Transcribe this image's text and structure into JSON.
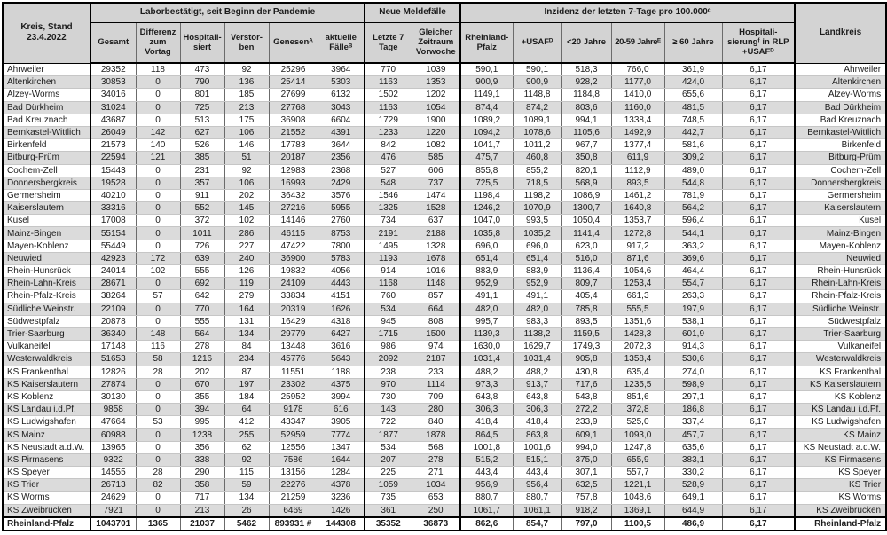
{
  "header": {
    "kreis_label": "Kreis, Stand\n23.4.2022",
    "groups": [
      {
        "label": "Laborbestätigt, seit Beginn der Pandemie"
      },
      {
        "label": "Neue Meldefälle"
      },
      {
        "label": "Inzidenz der letzten 7-Tage pro 100.000ᶜ"
      }
    ],
    "columns": [
      "Gesamt",
      "Differenz zum Vortag",
      "Hospitali-siert",
      "Verstor-ben",
      "Genesenᴬ",
      "aktuelle Fälleᴮ",
      "Letzte 7 Tage",
      "Gleicher Zeitraum Vorwoche",
      "Rheinland-Pfalz",
      "+USAFᴰ",
      "<20 Jahre",
      "20-59 Jahreᴱ",
      "≥ 60 Jahre",
      "Hospitali-sierungᶠ in RLP +USAFᴰ"
    ],
    "landkreis_label": "Landkreis"
  },
  "rows": [
    {
      "kreis": "Ahrweiler",
      "values": [
        "29352",
        "118",
        "473",
        "92",
        "25296",
        "3964",
        "770",
        "1039",
        "590,1",
        "590,1",
        "518,3",
        "766,0",
        "361,9",
        "6,17"
      ]
    },
    {
      "kreis": "Altenkirchen",
      "values": [
        "30853",
        "0",
        "790",
        "136",
        "25414",
        "5303",
        "1163",
        "1353",
        "900,9",
        "900,9",
        "928,2",
        "1177,0",
        "424,0",
        "6,17"
      ]
    },
    {
      "kreis": "Alzey-Worms",
      "values": [
        "34016",
        "0",
        "801",
        "185",
        "27699",
        "6132",
        "1502",
        "1202",
        "1149,1",
        "1148,8",
        "1184,8",
        "1410,0",
        "655,6",
        "6,17"
      ]
    },
    {
      "kreis": "Bad Dürkheim",
      "values": [
        "31024",
        "0",
        "725",
        "213",
        "27768",
        "3043",
        "1163",
        "1054",
        "874,4",
        "874,2",
        "803,6",
        "1160,0",
        "481,5",
        "6,17"
      ]
    },
    {
      "kreis": "Bad Kreuznach",
      "values": [
        "43687",
        "0",
        "513",
        "175",
        "36908",
        "6604",
        "1729",
        "1900",
        "1089,2",
        "1089,1",
        "994,1",
        "1338,4",
        "748,5",
        "6,17"
      ]
    },
    {
      "kreis": "Bernkastel-Wittlich",
      "values": [
        "26049",
        "142",
        "627",
        "106",
        "21552",
        "4391",
        "1233",
        "1220",
        "1094,2",
        "1078,6",
        "1105,6",
        "1492,9",
        "442,7",
        "6,17"
      ]
    },
    {
      "kreis": "Birkenfeld",
      "values": [
        "21573",
        "140",
        "526",
        "146",
        "17783",
        "3644",
        "842",
        "1082",
        "1041,7",
        "1011,2",
        "967,7",
        "1377,4",
        "581,6",
        "6,17"
      ]
    },
    {
      "kreis": "Bitburg-Prüm",
      "values": [
        "22594",
        "121",
        "385",
        "51",
        "20187",
        "2356",
        "476",
        "585",
        "475,7",
        "460,8",
        "350,8",
        "611,9",
        "309,2",
        "6,17"
      ]
    },
    {
      "kreis": "Cochem-Zell",
      "values": [
        "15443",
        "0",
        "231",
        "92",
        "12983",
        "2368",
        "527",
        "606",
        "855,8",
        "855,2",
        "820,1",
        "1112,9",
        "489,0",
        "6,17"
      ]
    },
    {
      "kreis": "Donnersbergkreis",
      "values": [
        "19528",
        "0",
        "357",
        "106",
        "16993",
        "2429",
        "548",
        "737",
        "725,5",
        "718,5",
        "568,9",
        "893,5",
        "544,8",
        "6,17"
      ]
    },
    {
      "kreis": "Germersheim",
      "values": [
        "40210",
        "0",
        "911",
        "202",
        "36432",
        "3576",
        "1546",
        "1474",
        "1198,4",
        "1198,2",
        "1086,9",
        "1461,2",
        "781,9",
        "6,17"
      ]
    },
    {
      "kreis": "Kaiserslautern",
      "values": [
        "33316",
        "0",
        "552",
        "145",
        "27216",
        "5955",
        "1325",
        "1528",
        "1246,2",
        "1070,9",
        "1300,7",
        "1640,8",
        "564,2",
        "6,17"
      ]
    },
    {
      "kreis": "Kusel",
      "values": [
        "17008",
        "0",
        "372",
        "102",
        "14146",
        "2760",
        "734",
        "637",
        "1047,0",
        "993,5",
        "1050,4",
        "1353,7",
        "596,4",
        "6,17"
      ]
    },
    {
      "kreis": "Mainz-Bingen",
      "values": [
        "55154",
        "0",
        "1011",
        "286",
        "46115",
        "8753",
        "2191",
        "2188",
        "1035,8",
        "1035,2",
        "1141,4",
        "1272,8",
        "544,1",
        "6,17"
      ]
    },
    {
      "kreis": "Mayen-Koblenz",
      "values": [
        "55449",
        "0",
        "726",
        "227",
        "47422",
        "7800",
        "1495",
        "1328",
        "696,0",
        "696,0",
        "623,0",
        "917,2",
        "363,2",
        "6,17"
      ]
    },
    {
      "kreis": "Neuwied",
      "values": [
        "42923",
        "172",
        "639",
        "240",
        "36900",
        "5783",
        "1193",
        "1678",
        "651,4",
        "651,4",
        "516,0",
        "871,6",
        "369,6",
        "6,17"
      ]
    },
    {
      "kreis": "Rhein-Hunsrück",
      "values": [
        "24014",
        "102",
        "555",
        "126",
        "19832",
        "4056",
        "914",
        "1016",
        "883,9",
        "883,9",
        "1136,4",
        "1054,6",
        "464,4",
        "6,17"
      ]
    },
    {
      "kreis": "Rhein-Lahn-Kreis",
      "values": [
        "28671",
        "0",
        "692",
        "119",
        "24109",
        "4443",
        "1168",
        "1148",
        "952,9",
        "952,9",
        "809,7",
        "1253,4",
        "554,7",
        "6,17"
      ]
    },
    {
      "kreis": "Rhein-Pfalz-Kreis",
      "values": [
        "38264",
        "57",
        "642",
        "279",
        "33834",
        "4151",
        "760",
        "857",
        "491,1",
        "491,1",
        "405,4",
        "661,3",
        "263,3",
        "6,17"
      ]
    },
    {
      "kreis": "Südliche Weinstr.",
      "values": [
        "22109",
        "0",
        "770",
        "164",
        "20319",
        "1626",
        "534",
        "664",
        "482,0",
        "482,0",
        "785,8",
        "555,5",
        "197,9",
        "6,17"
      ]
    },
    {
      "kreis": "Südwestpfalz",
      "values": [
        "20878",
        "0",
        "555",
        "131",
        "16429",
        "4318",
        "945",
        "808",
        "995,7",
        "983,3",
        "893,5",
        "1351,6",
        "538,1",
        "6,17"
      ]
    },
    {
      "kreis": "Trier-Saarburg",
      "values": [
        "36340",
        "148",
        "564",
        "134",
        "29779",
        "6427",
        "1715",
        "1500",
        "1139,3",
        "1138,2",
        "1159,5",
        "1428,3",
        "601,9",
        "6,17"
      ]
    },
    {
      "kreis": "Vulkaneifel",
      "values": [
        "17148",
        "116",
        "278",
        "84",
        "13448",
        "3616",
        "986",
        "974",
        "1630,0",
        "1629,7",
        "1749,3",
        "2072,3",
        "914,3",
        "6,17"
      ]
    },
    {
      "kreis": "Westerwaldkreis",
      "values": [
        "51653",
        "58",
        "1216",
        "234",
        "45776",
        "5643",
        "2092",
        "2187",
        "1031,4",
        "1031,4",
        "905,8",
        "1358,4",
        "530,6",
        "6,17"
      ]
    },
    {
      "kreis": "KS Frankenthal",
      "values": [
        "12826",
        "28",
        "202",
        "87",
        "11551",
        "1188",
        "238",
        "233",
        "488,2",
        "488,2",
        "430,8",
        "635,4",
        "274,0",
        "6,17"
      ]
    },
    {
      "kreis": "KS Kaiserslautern",
      "values": [
        "27874",
        "0",
        "670",
        "197",
        "23302",
        "4375",
        "970",
        "1114",
        "973,3",
        "913,7",
        "717,6",
        "1235,5",
        "598,9",
        "6,17"
      ]
    },
    {
      "kreis": "KS Koblenz",
      "values": [
        "30130",
        "0",
        "355",
        "184",
        "25952",
        "3994",
        "730",
        "709",
        "643,8",
        "643,8",
        "543,8",
        "851,6",
        "297,1",
        "6,17"
      ]
    },
    {
      "kreis": "KS Landau i.d.Pf.",
      "values": [
        "9858",
        "0",
        "394",
        "64",
        "9178",
        "616",
        "143",
        "280",
        "306,3",
        "306,3",
        "272,2",
        "372,8",
        "186,8",
        "6,17"
      ]
    },
    {
      "kreis": "KS Ludwigshafen",
      "values": [
        "47664",
        "53",
        "995",
        "412",
        "43347",
        "3905",
        "722",
        "840",
        "418,4",
        "418,4",
        "233,9",
        "525,0",
        "337,4",
        "6,17"
      ]
    },
    {
      "kreis": "KS Mainz",
      "values": [
        "60988",
        "0",
        "1238",
        "255",
        "52959",
        "7774",
        "1877",
        "1878",
        "864,5",
        "863,8",
        "609,1",
        "1093,0",
        "457,7",
        "6,17"
      ]
    },
    {
      "kreis": "KS Neustadt a.d.W.",
      "values": [
        "13965",
        "0",
        "356",
        "62",
        "12556",
        "1347",
        "534",
        "568",
        "1001,8",
        "1001,6",
        "994,0",
        "1247,8",
        "635,6",
        "6,17"
      ]
    },
    {
      "kreis": "KS Pirmasens",
      "values": [
        "9322",
        "0",
        "338",
        "92",
        "7586",
        "1644",
        "207",
        "278",
        "515,2",
        "515,1",
        "375,0",
        "655,9",
        "383,1",
        "6,17"
      ]
    },
    {
      "kreis": "KS Speyer",
      "values": [
        "14555",
        "28",
        "290",
        "115",
        "13156",
        "1284",
        "225",
        "271",
        "443,4",
        "443,4",
        "307,1",
        "557,7",
        "330,2",
        "6,17"
      ]
    },
    {
      "kreis": "KS Trier",
      "values": [
        "26713",
        "82",
        "358",
        "59",
        "22276",
        "4378",
        "1059",
        "1034",
        "956,9",
        "956,4",
        "632,5",
        "1221,1",
        "528,9",
        "6,17"
      ]
    },
    {
      "kreis": "KS Worms",
      "values": [
        "24629",
        "0",
        "717",
        "134",
        "21259",
        "3236",
        "735",
        "653",
        "880,7",
        "880,7",
        "757,8",
        "1048,6",
        "649,1",
        "6,17"
      ]
    },
    {
      "kreis": "KS Zweibrücken",
      "values": [
        "7921",
        "0",
        "213",
        "26",
        "6469",
        "1426",
        "361",
        "250",
        "1061,7",
        "1061,1",
        "918,2",
        "1369,1",
        "644,9",
        "6,17"
      ]
    }
  ],
  "total": {
    "kreis": "Rheinland-Pfalz",
    "values": [
      "1043701",
      "1365",
      "21037",
      "5462",
      "893931 #",
      "144308",
      "35352",
      "36873",
      "862,6",
      "854,7",
      "797,0",
      "1100,5",
      "486,9",
      "6,17"
    ]
  }
}
